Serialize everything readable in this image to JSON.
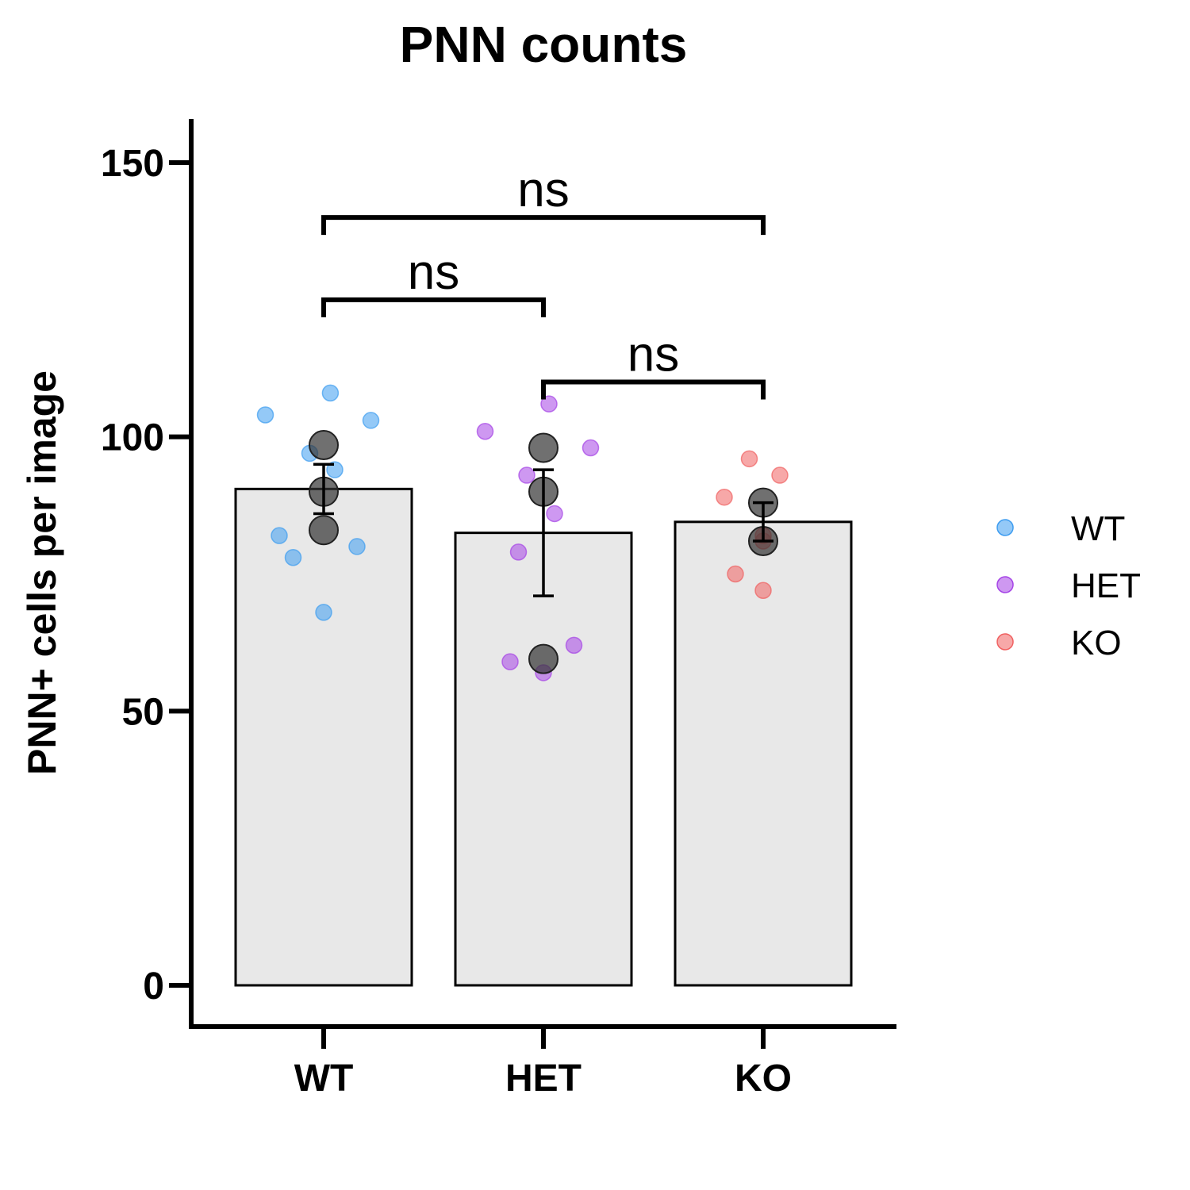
{
  "chart_data": {
    "type": "bar",
    "title": "PNN counts",
    "xlabel": "",
    "ylabel": "PNN+ cells per image",
    "ylim": [
      -7.5,
      158
    ],
    "yticks": [
      0,
      50,
      100,
      150
    ],
    "categories": [
      "WT",
      "HET",
      "KO"
    ],
    "bar_color": "#e8e8e8",
    "means": [
      90.5,
      82.5,
      84.5
    ],
    "error": [
      {
        "low": 86,
        "high": 95
      },
      {
        "low": 71,
        "high": 94
      },
      {
        "low": 81,
        "high": 88
      }
    ],
    "animal_means": [
      [
        98.5,
        90,
        83
      ],
      [
        98,
        90,
        59.5
      ],
      [
        88,
        81
      ]
    ],
    "points": [
      {
        "group": "WT",
        "color": "#3d9cf0",
        "x_offset": [
          -1.05,
          0.12,
          -0.25,
          0.85,
          0.2,
          -0.8,
          -0.55,
          0.6,
          0
        ],
        "values": [
          104,
          108,
          97,
          103,
          94,
          82,
          78,
          80,
          68
        ]
      },
      {
        "group": "HET",
        "color": "#a543e6",
        "x_offset": [
          -1.05,
          0.1,
          -0.3,
          0.85,
          0.2,
          -0.45,
          0.55,
          -0.6,
          0
        ],
        "values": [
          101,
          106,
          93,
          98,
          86,
          79,
          62,
          59,
          57
        ]
      },
      {
        "group": "KO",
        "color": "#f06060",
        "x_offset": [
          -0.25,
          -0.7,
          0.3,
          0,
          -0.5,
          0,
          0
        ],
        "values": [
          96,
          89,
          93,
          82,
          75,
          72,
          81
        ]
      }
    ],
    "significance": [
      {
        "from": 0,
        "to": 2,
        "y": 140,
        "label": "ns"
      },
      {
        "from": 0,
        "to": 1,
        "y": 125,
        "label": "ns"
      },
      {
        "from": 1,
        "to": 2,
        "y": 110,
        "label": "ns"
      }
    ],
    "legend": {
      "position": "right",
      "entries": [
        {
          "label": "WT",
          "color": "#3d9cf0"
        },
        {
          "label": "HET",
          "color": "#a543e6"
        },
        {
          "label": "KO",
          "color": "#f06060"
        }
      ]
    },
    "grid": false
  }
}
